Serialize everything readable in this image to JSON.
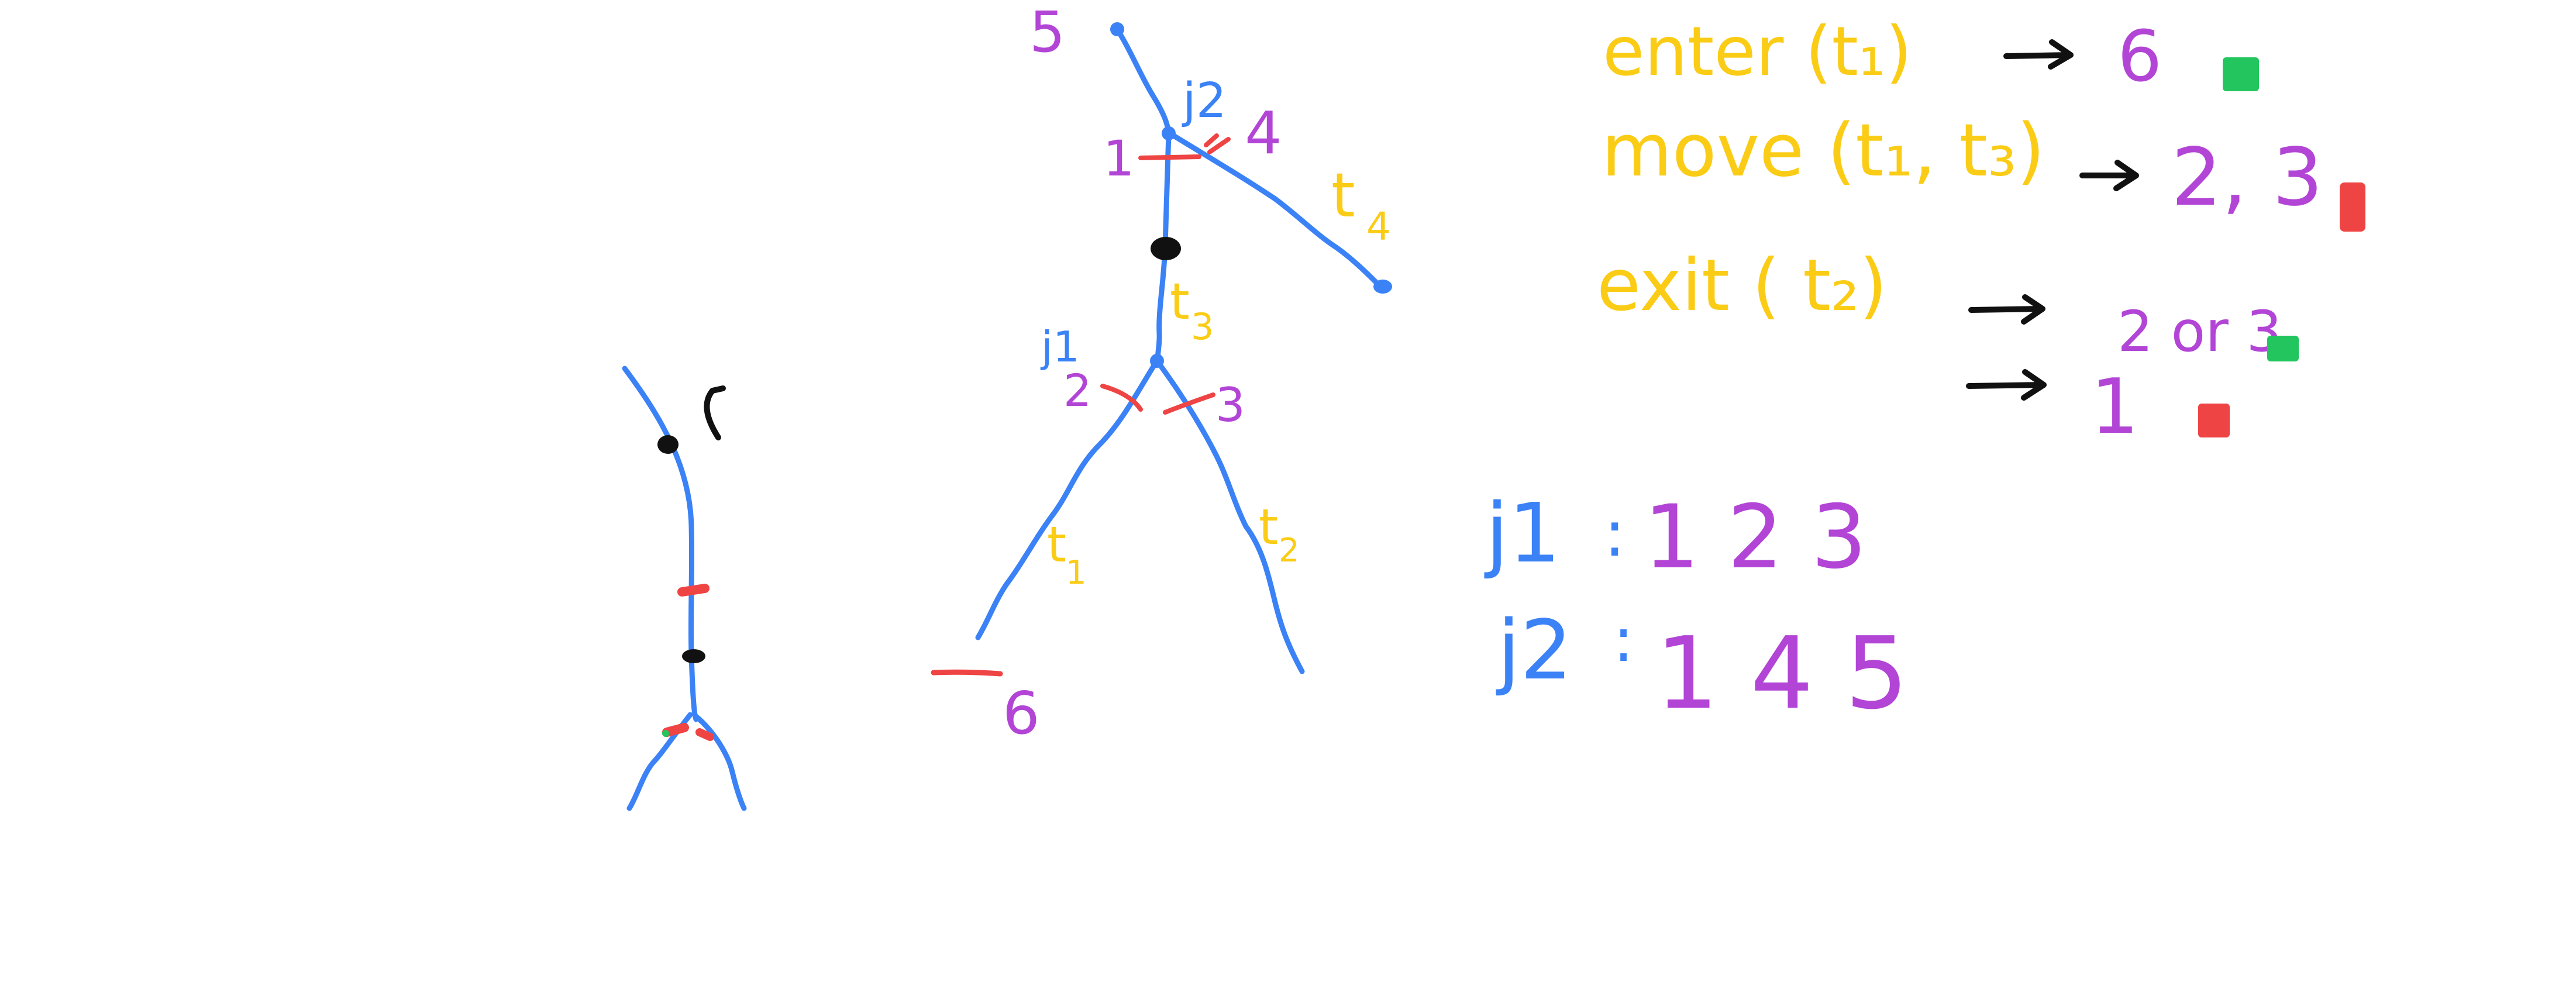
{
  "colors": {
    "track": "#3b82f6",
    "signal": "#ef4444",
    "tie": "#111111",
    "track_label": "#facc15",
    "signal_label": "#b245d6",
    "ok": "#22c55e",
    "stop": "#ef4444",
    "junction_label": "#3b82f6"
  },
  "diagram": {
    "signals": {
      "s1": "1",
      "s2": "2",
      "s3": "3",
      "s4": "4",
      "s5": "5",
      "s6": "6"
    },
    "tracks": {
      "t1": "t",
      "t1_sub": "1",
      "t2": "t",
      "t2_sub": "2",
      "t3": "t",
      "t3_sub": "3",
      "t4": "t",
      "t4_sub": "4"
    },
    "junctions": {
      "j1": "j1",
      "j2": "j2"
    }
  },
  "rules": [
    {
      "expr": "enter (t₁)",
      "result": "6",
      "status": "green"
    },
    {
      "expr": "move (t₁, t₃)",
      "result": "2, 3",
      "status": "red"
    },
    {
      "expr": "exit ( t₂)",
      "result": "2 or 3",
      "status": "green",
      "alt_result": "1",
      "alt_status": "red"
    }
  ],
  "junction_table": [
    {
      "name": "j1",
      "values": "1  2 3"
    },
    {
      "name": "j2",
      "values": "1 4 5"
    }
  ]
}
